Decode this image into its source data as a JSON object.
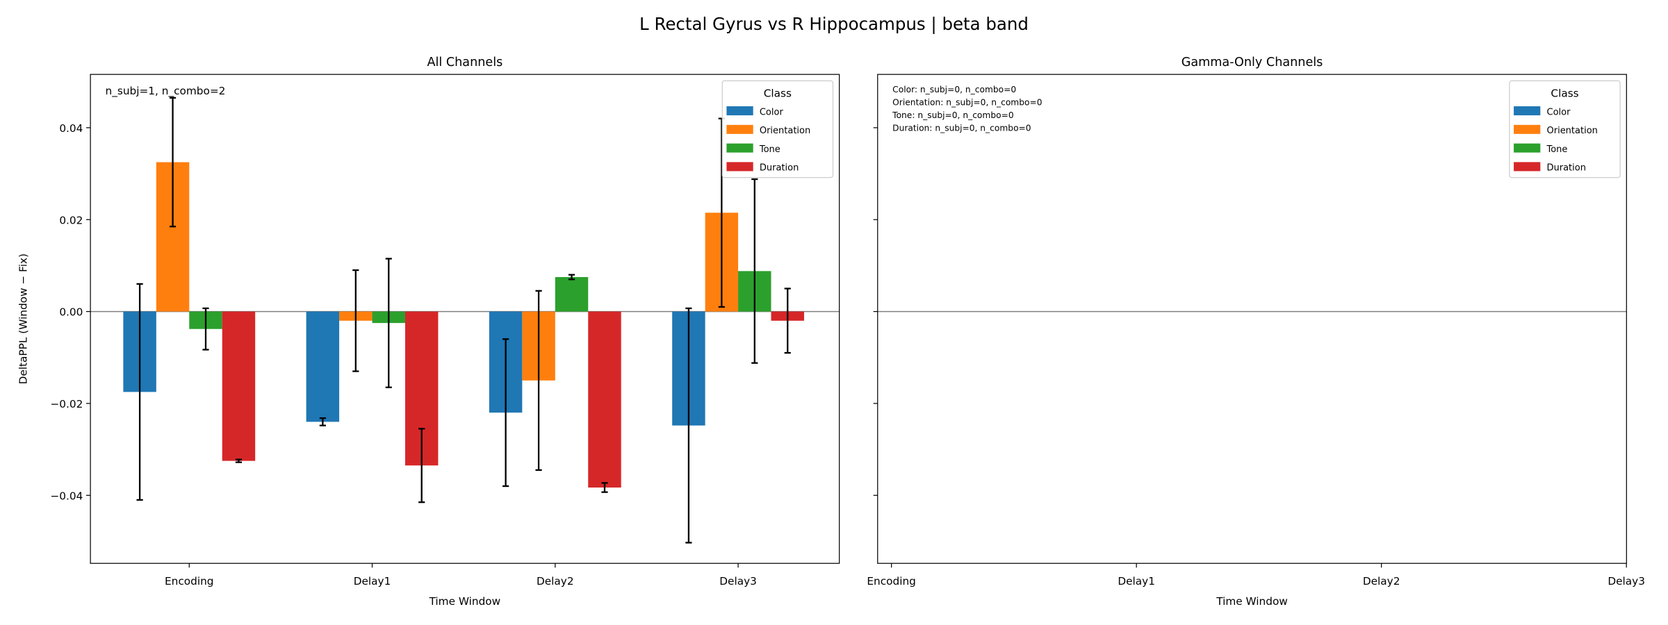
{
  "title": "L Rectal Gyrus vs R Hippocampus  |  beta band",
  "chart_data": [
    {
      "type": "bar",
      "title": "All Channels",
      "categories": [
        "Encoding",
        "Delay1",
        "Delay2",
        "Delay3"
      ],
      "xlabel": "Time Window",
      "ylabel": "DeltaPPL (Window − Fix)",
      "annotation": "n_subj=1, n_combo=2",
      "legend_title": "Class",
      "legend": "upper right",
      "ylim": [
        -0.0548,
        0.0516
      ],
      "yticks": [
        {
          "value": -0.04,
          "label": "−0.04"
        },
        {
          "value": -0.02,
          "label": "−0.02"
        },
        {
          "value": 0,
          "label": "0.00"
        },
        0.02,
        0.04
      ],
      "series": [
        {
          "name": "Color",
          "color": "#1f77b4",
          "values": [
            -0.0175,
            -0.024,
            -0.022,
            -0.0248
          ],
          "errors": [
            0.0235,
            0.0008,
            0.016,
            0.0255
          ]
        },
        {
          "name": "Orientation",
          "color": "#ff7f0e",
          "values": [
            0.0325,
            -0.002,
            -0.015,
            0.0215
          ],
          "errors": [
            0.014,
            0.011,
            0.0195,
            0.0205
          ]
        },
        {
          "name": "Tone",
          "color": "#2ca02c",
          "values": [
            -0.0038,
            -0.0025,
            0.0075,
            0.0088
          ],
          "errors": [
            0.0045,
            0.014,
            0.0005,
            0.02
          ]
        },
        {
          "name": "Duration",
          "color": "#d62728",
          "values": [
            -0.0325,
            -0.0335,
            -0.0383,
            -0.002
          ],
          "errors": [
            0.0003,
            0.008,
            0.001,
            0.007
          ]
        }
      ]
    },
    {
      "type": "bar",
      "title": "Gamma-Only Channels",
      "categories": [
        "Encoding",
        "Delay1",
        "Delay2",
        "Delay3"
      ],
      "xlabel": "Time Window",
      "annotations": [
        "Color: n_subj=0, n_combo=0",
        "Orientation: n_subj=0, n_combo=0",
        "Tone: n_subj=0, n_combo=0",
        "Duration: n_subj=0, n_combo=0"
      ],
      "legend_title": "Class",
      "legend": "upper right",
      "ylim": [
        -0.0548,
        0.0516
      ],
      "yticks": [
        -0.04,
        -0.02,
        0,
        0.02,
        0.04
      ],
      "series": [
        {
          "name": "Color",
          "color": "#1f77b4"
        },
        {
          "name": "Orientation",
          "color": "#ff7f0e"
        },
        {
          "name": "Tone",
          "color": "#2ca02c"
        },
        {
          "name": "Duration",
          "color": "#d62728"
        }
      ]
    }
  ]
}
